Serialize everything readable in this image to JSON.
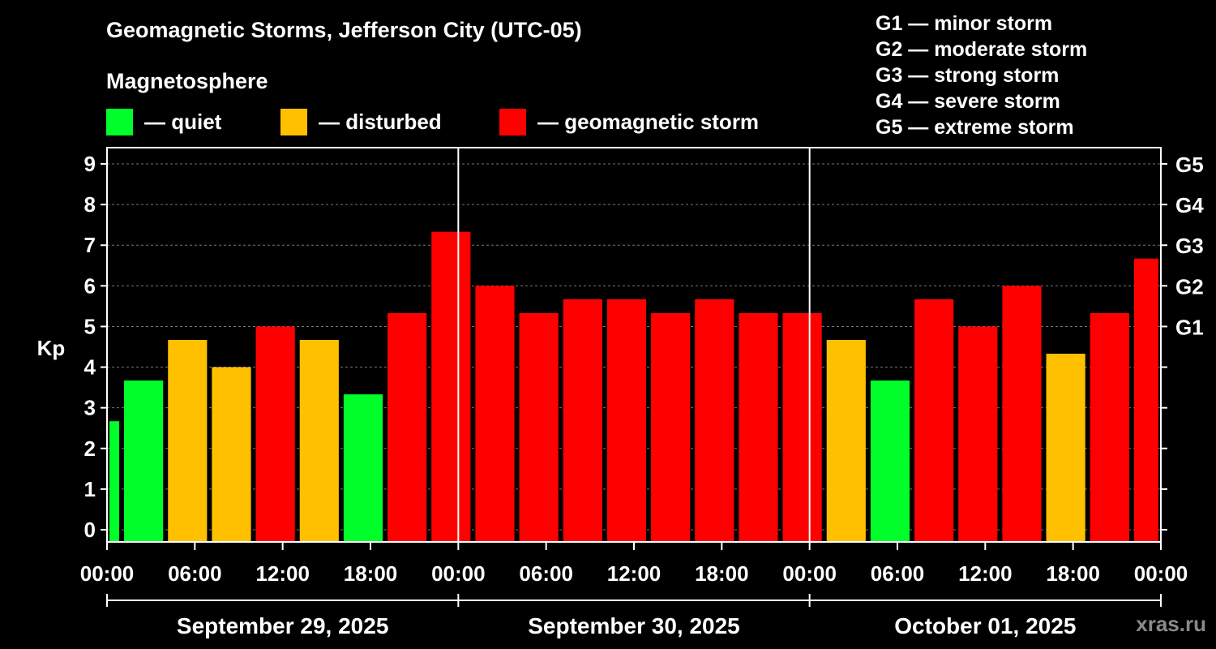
{
  "title": "Geomagnetic Storms, Jefferson City (UTC-05)",
  "magnetosphere_title": "Magnetosphere",
  "legend": [
    {
      "label": "— quiet",
      "color": "#00FF2A"
    },
    {
      "label": "— disturbed",
      "color": "#FFC000"
    },
    {
      "label": "— geomagnetic storm",
      "color": "#FF0000"
    }
  ],
  "storm_scale": [
    "G1 — minor storm",
    "G2 — moderate storm",
    "G3 — strong storm",
    "G4 — severe storm",
    "G5 — extreme storm"
  ],
  "credit": "xras.ru",
  "chart_data": {
    "type": "bar",
    "ylabel": "Kp",
    "ylim": [
      -0.3,
      9.4
    ],
    "yticks": [
      0,
      1,
      2,
      3,
      4,
      5,
      6,
      7,
      8,
      9
    ],
    "right_ticks": [
      {
        "value": 5,
        "label": "G1"
      },
      {
        "value": 6,
        "label": "G2"
      },
      {
        "value": 7,
        "label": "G3"
      },
      {
        "value": 8,
        "label": "G4"
      },
      {
        "value": 9,
        "label": "G5"
      }
    ],
    "x_hours_range": [
      0,
      72
    ],
    "x_tick_labels": [
      "00:00",
      "06:00",
      "12:00",
      "18:00",
      "00:00",
      "06:00",
      "12:00",
      "18:00",
      "00:00",
      "06:00",
      "12:00",
      "18:00",
      "00:00"
    ],
    "day_labels": [
      "September 29, 2025",
      "September 30, 2025",
      "October 01, 2025"
    ],
    "bars": [
      {
        "start": 0,
        "end": 1,
        "value": 2.67,
        "status": "quiet"
      },
      {
        "start": 1,
        "end": 4,
        "value": 3.67,
        "status": "quiet"
      },
      {
        "start": 4,
        "end": 7,
        "value": 4.67,
        "status": "disturbed"
      },
      {
        "start": 7,
        "end": 10,
        "value": 4.0,
        "status": "disturbed"
      },
      {
        "start": 10,
        "end": 13,
        "value": 5.0,
        "status": "storm"
      },
      {
        "start": 13,
        "end": 16,
        "value": 4.67,
        "status": "disturbed"
      },
      {
        "start": 16,
        "end": 19,
        "value": 3.33,
        "status": "quiet"
      },
      {
        "start": 19,
        "end": 22,
        "value": 5.33,
        "status": "storm"
      },
      {
        "start": 22,
        "end": 25,
        "value": 7.33,
        "status": "storm"
      },
      {
        "start": 25,
        "end": 28,
        "value": 6.0,
        "status": "storm"
      },
      {
        "start": 28,
        "end": 31,
        "value": 5.33,
        "status": "storm"
      },
      {
        "start": 31,
        "end": 34,
        "value": 5.67,
        "status": "storm"
      },
      {
        "start": 34,
        "end": 37,
        "value": 5.67,
        "status": "storm"
      },
      {
        "start": 37,
        "end": 40,
        "value": 5.33,
        "status": "storm"
      },
      {
        "start": 40,
        "end": 43,
        "value": 5.67,
        "status": "storm"
      },
      {
        "start": 43,
        "end": 46,
        "value": 5.33,
        "status": "storm"
      },
      {
        "start": 46,
        "end": 49,
        "value": 5.33,
        "status": "storm"
      },
      {
        "start": 49,
        "end": 52,
        "value": 4.67,
        "status": "disturbed"
      },
      {
        "start": 52,
        "end": 55,
        "value": 3.67,
        "status": "quiet"
      },
      {
        "start": 55,
        "end": 58,
        "value": 5.67,
        "status": "storm"
      },
      {
        "start": 58,
        "end": 61,
        "value": 5.0,
        "status": "storm"
      },
      {
        "start": 61,
        "end": 64,
        "value": 6.0,
        "status": "storm"
      },
      {
        "start": 64,
        "end": 67,
        "value": 4.33,
        "status": "disturbed"
      },
      {
        "start": 67,
        "end": 70,
        "value": 5.33,
        "status": "storm"
      },
      {
        "start": 70,
        "end": 72,
        "value": 6.67,
        "status": "storm"
      }
    ],
    "status_colors": {
      "quiet": "#00FF2A",
      "disturbed": "#FFC000",
      "storm": "#FF0000"
    },
    "grid": true
  }
}
